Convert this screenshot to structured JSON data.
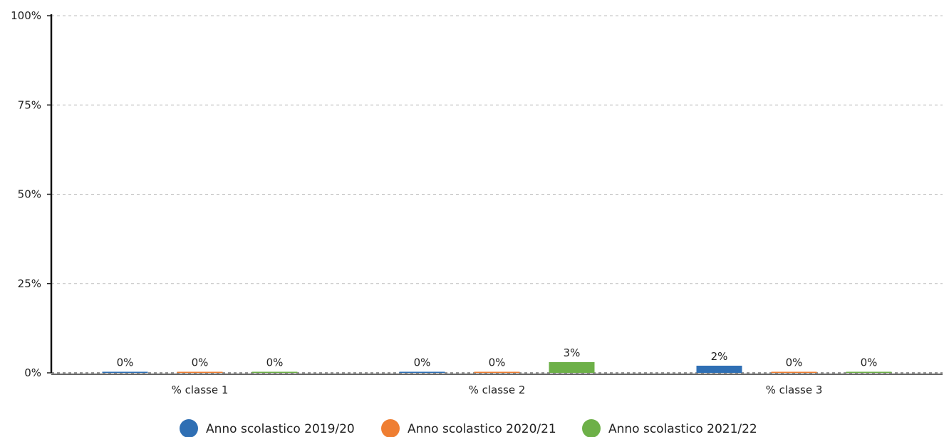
{
  "chart_data": {
    "type": "bar",
    "title": "",
    "xlabel": "",
    "ylabel": "",
    "ylim": [
      0,
      100
    ],
    "yticks": [
      0,
      25,
      50,
      75,
      100
    ],
    "ytick_labels": [
      "0%",
      "25%",
      "50%",
      "75%",
      "100%"
    ],
    "grid": true,
    "legend_position": "bottom",
    "categories": [
      "% classe 1",
      "% classe 2",
      "% classe 3"
    ],
    "series": [
      {
        "name": "Anno scolastico 2019/20",
        "color": "#2f6fb4",
        "values": [
          0.3,
          0.3,
          2
        ],
        "labels": [
          "0%",
          "0%",
          "2%"
        ]
      },
      {
        "name": "Anno scolastico 2020/21",
        "color": "#ef7e32",
        "values": [
          0.3,
          0.3,
          0.3
        ],
        "labels": [
          "0%",
          "0%",
          "0%"
        ]
      },
      {
        "name": "Anno scolastico 2021/22",
        "color": "#6db048",
        "values": [
          0.3,
          3,
          0.3
        ],
        "labels": [
          "0%",
          "3%",
          "0%"
        ]
      }
    ]
  }
}
